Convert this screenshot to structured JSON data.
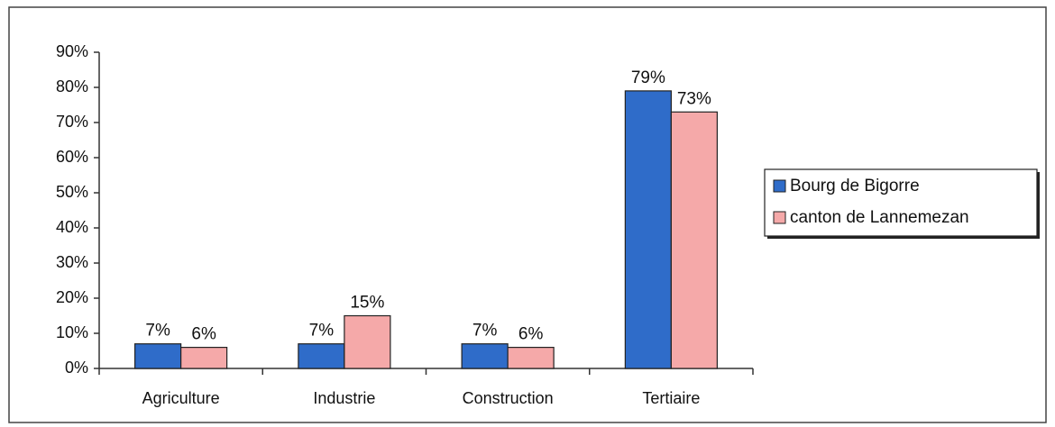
{
  "chart_data": {
    "type": "bar",
    "categories": [
      "Agriculture",
      "Industrie",
      "Construction",
      "Tertiaire"
    ],
    "series": [
      {
        "name": "Bourg de Bigorre",
        "color": "#2f6cc9",
        "values": [
          7,
          7,
          7,
          79
        ],
        "value_labels": [
          "7%",
          "7%",
          "7%",
          "79%"
        ]
      },
      {
        "name": "canton de Lannemezan",
        "color": "#f5a9a9",
        "values": [
          6,
          15,
          6,
          73
        ],
        "value_labels": [
          "6%",
          "15%",
          "6%",
          "73%"
        ]
      }
    ],
    "ylim": [
      0,
      90
    ],
    "yticks": [
      {
        "value": 0,
        "label": "0%"
      },
      {
        "value": 10,
        "label": "10%"
      },
      {
        "value": 20,
        "label": "20%"
      },
      {
        "value": 30,
        "label": "30%"
      },
      {
        "value": 40,
        "label": "40%"
      },
      {
        "value": 50,
        "label": "50%"
      },
      {
        "value": 60,
        "label": "60%"
      },
      {
        "value": 70,
        "label": "70%"
      },
      {
        "value": 80,
        "label": "80%"
      },
      {
        "value": 90,
        "label": "90%"
      }
    ],
    "grid": false,
    "legend": "right"
  }
}
